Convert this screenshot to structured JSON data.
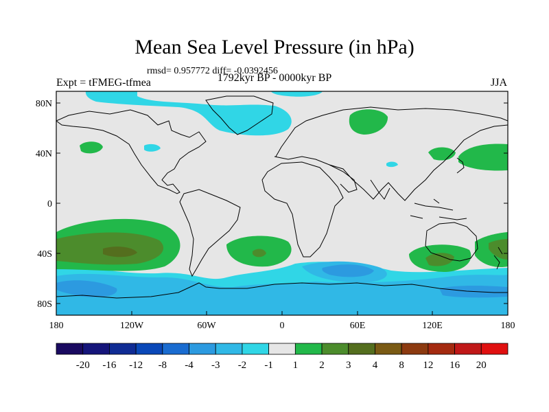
{
  "header": {
    "title": "Mean Sea Level Pressure (in hPa)",
    "stats": "rmsd= 0.957772 diff= -0.0392456",
    "period": "1792kyr BP - 0000kyr BP",
    "experiment": "Expt = tFMEG-tfmea",
    "season": "JJA"
  },
  "axes": {
    "lat_ticks": [
      "80N",
      "40N",
      "0",
      "40S",
      "80S"
    ],
    "lon_ticks": [
      "180",
      "120W",
      "60W",
      "0",
      "60E",
      "120E",
      "180"
    ]
  },
  "colorbar": {
    "labels": [
      "-20",
      "-16",
      "-12",
      "-8",
      "-4",
      "-3",
      "-2",
      "-1",
      "1",
      "2",
      "3",
      "4",
      "8",
      "12",
      "16",
      "20"
    ],
    "colors": [
      "#1a0a60",
      "#15157a",
      "#102c94",
      "#0a48b8",
      "#1a6cd0",
      "#2c9ae0",
      "#30b8e6",
      "#30d6e6",
      "#e6e6e6",
      "#22b84a",
      "#4c8c2c",
      "#546e1e",
      "#7a5a14",
      "#8c3a10",
      "#a42a10",
      "#c01818",
      "#e01010"
    ]
  },
  "map_colors": {
    "background": "#e6e6e6",
    "neg1": "#30d6e6",
    "neg2": "#30b8e6",
    "neg3": "#2c9ae0",
    "pos1": "#22b84a",
    "pos2": "#4c8c2c",
    "pos3": "#546e1e"
  }
}
